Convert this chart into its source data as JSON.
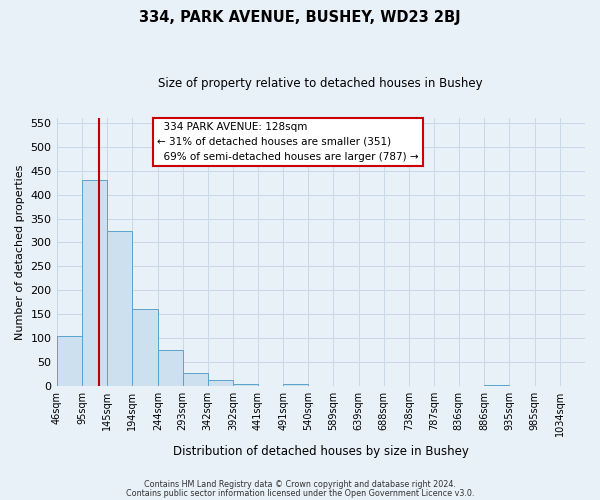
{
  "title": "334, PARK AVENUE, BUSHEY, WD23 2BJ",
  "subtitle": "Size of property relative to detached houses in Bushey",
  "xlabel": "Distribution of detached houses by size in Bushey",
  "ylabel": "Number of detached properties",
  "bar_values": [
    105,
    430,
    323,
    162,
    75,
    27,
    13,
    5,
    0,
    4,
    0,
    0,
    0,
    0,
    0,
    0,
    0,
    3,
    0,
    0
  ],
  "bin_edges": [
    46,
    95,
    145,
    194,
    244,
    293,
    342,
    392,
    441,
    491,
    540,
    589,
    639,
    688,
    738,
    787,
    836,
    886,
    935,
    985,
    1034
  ],
  "bin_labels": [
    "46sqm",
    "95sqm",
    "145sqm",
    "194sqm",
    "244sqm",
    "293sqm",
    "342sqm",
    "392sqm",
    "441sqm",
    "491sqm",
    "540sqm",
    "589sqm",
    "639sqm",
    "688sqm",
    "738sqm",
    "787sqm",
    "836sqm",
    "886sqm",
    "935sqm",
    "985sqm",
    "1034sqm"
  ],
  "bar_color": "#cce0f0",
  "bar_edge_color": "#5ba3cc",
  "grid_color": "#c8d8e8",
  "background_color": "#e8f0f8",
  "ylim": [
    0,
    560
  ],
  "yticks": [
    0,
    50,
    100,
    150,
    200,
    250,
    300,
    350,
    400,
    450,
    500,
    550
  ],
  "property_label": "334 PARK AVENUE: 128sqm",
  "pct_smaller": 31,
  "n_smaller": 351,
  "pct_larger_semi": 69,
  "n_larger_semi": 787,
  "vline_x": 128,
  "vline_color": "#bb0000",
  "annotation_box_edge": "#cc0000",
  "footer_line1": "Contains HM Land Registry data © Crown copyright and database right 2024.",
  "footer_line2": "Contains public sector information licensed under the Open Government Licence v3.0."
}
